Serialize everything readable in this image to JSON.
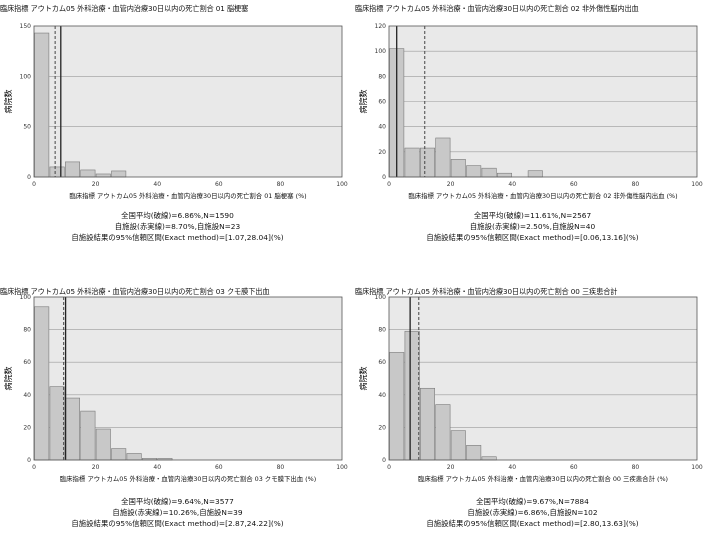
{
  "chart_data": [
    {
      "type": "bar",
      "title": "臨床指標 アウトカム05 外科治療・血管内治療30日以内の死亡割合 01 脳梗塞",
      "xlabel": "臨床指標 アウトカム05 外科治療・血管内治療30日以内の死亡割合 01 脳梗塞 (%)",
      "ylabel": "病院数",
      "xlim": [
        0,
        100
      ],
      "ylim": [
        0,
        150
      ],
      "xticks": [
        "0",
        "20",
        "40",
        "60",
        "80",
        "100"
      ],
      "yticks": [
        "0",
        "50",
        "100",
        "150"
      ],
      "bin_width": 5,
      "bins": [
        0,
        5,
        10,
        15,
        20,
        25,
        30,
        35,
        40,
        45,
        50,
        55,
        60,
        65,
        70,
        75,
        80,
        85,
        90,
        95
      ],
      "values": [
        143,
        10,
        15,
        7,
        3,
        6,
        0,
        0,
        0,
        0,
        0,
        0,
        0,
        0,
        0,
        0,
        0,
        0,
        0,
        0
      ],
      "national_mean": 6.86,
      "facility_value": 8.7,
      "ci": [
        1.07,
        28.04
      ],
      "stats": [
        "全国平均(破線)=6.86%,N=1590",
        "自施設(赤実線)=8.70%,自施設N=23",
        "自施設結果の95%信頼区間(Exact method)=[1.07,28.04](%)"
      ]
    },
    {
      "type": "bar",
      "title": "臨床指標 アウトカム05 外科治療・血管内治療30日以内の死亡割合 02 非外傷性脳内出血",
      "xlabel": "臨床指標 アウトカム05 外科治療・血管内治療30日以内の死亡割合 02 非外傷性脳内出血 (%)",
      "ylabel": "病院数",
      "xlim": [
        0,
        100
      ],
      "ylim": [
        0,
        120
      ],
      "xticks": [
        "0",
        "20",
        "40",
        "60",
        "80",
        "100"
      ],
      "yticks": [
        "0",
        "20",
        "40",
        "60",
        "80",
        "100",
        "120"
      ],
      "bin_width": 5,
      "bins": [
        0,
        5,
        10,
        15,
        20,
        25,
        30,
        35,
        40,
        45,
        50,
        55,
        60,
        65,
        70,
        75,
        80,
        85,
        90,
        95
      ],
      "values": [
        102,
        23,
        23,
        31,
        14,
        9,
        7,
        3,
        0,
        5,
        0,
        0,
        0,
        0,
        0,
        0,
        0,
        0,
        0,
        0
      ],
      "national_mean": 11.61,
      "facility_value": 2.5,
      "ci": [
        0.06,
        13.16
      ],
      "stats": [
        "全国平均(破線)=11.61%,N=2567",
        "自施設(赤実線)=2.50%,自施設N=40",
        "自施設結果の95%信頼区間(Exact method)=[0.06,13.16](%)"
      ]
    },
    {
      "type": "bar",
      "title": "臨床指標 アウトカム05 外科治療・血管内治療30日以内の死亡割合 03 クモ膜下出血",
      "xlabel": "臨床指標 アウトカム05 外科治療・血管内治療30日以内の死亡割合 03 クモ膜下出血 (%)",
      "ylabel": "病院数",
      "xlim": [
        0,
        100
      ],
      "ylim": [
        0,
        100
      ],
      "xticks": [
        "0",
        "20",
        "40",
        "60",
        "80",
        "100"
      ],
      "yticks": [
        "0",
        "20",
        "40",
        "60",
        "80",
        "100"
      ],
      "bin_width": 5,
      "bins": [
        0,
        5,
        10,
        15,
        20,
        25,
        30,
        35,
        40,
        45,
        50,
        55,
        60,
        65,
        70,
        75,
        80,
        85,
        90,
        95
      ],
      "values": [
        94,
        45,
        38,
        30,
        19,
        7,
        4,
        1,
        1,
        0,
        0,
        0,
        0,
        0,
        0,
        0,
        0,
        0,
        0,
        0
      ],
      "national_mean": 9.64,
      "facility_value": 10.26,
      "ci": [
        2.87,
        24.22
      ],
      "stats": [
        "全国平均(破線)=9.64%,N=3577",
        "自施設(赤実線)=10.26%,自施設N=39",
        "自施設結果の95%信頼区間(Exact method)=[2.87,24.22](%)"
      ]
    },
    {
      "type": "bar",
      "title": "臨床指標 アウトカム05 外科治療・血管内治療30日以内の死亡割合 00 三疾患合計",
      "xlabel": "臨床指標 アウトカム05 外科治療・血管内治療30日以内の死亡割合 00 三疾患合計 (%)",
      "ylabel": "病院数",
      "xlim": [
        0,
        100
      ],
      "ylim": [
        0,
        100
      ],
      "xticks": [
        "0",
        "20",
        "40",
        "60",
        "80",
        "100"
      ],
      "yticks": [
        "0",
        "20",
        "40",
        "60",
        "80",
        "100"
      ],
      "bin_width": 5,
      "bins": [
        0,
        5,
        10,
        15,
        20,
        25,
        30,
        35,
        40,
        45,
        50,
        55,
        60,
        65,
        70,
        75,
        80,
        85,
        90,
        95
      ],
      "values": [
        66,
        79,
        44,
        34,
        18,
        9,
        2,
        0,
        0,
        0,
        0,
        0,
        0,
        0,
        0,
        0,
        0,
        0,
        0,
        0
      ],
      "national_mean": 9.67,
      "facility_value": 6.86,
      "ci": [
        2.8,
        13.63
      ],
      "stats": [
        "全国平均(破線)=9.67%,N=7884",
        "自施設(赤実線)=6.86%,自施設N=102",
        "自施設結果の95%信頼区間(Exact method)=[2.80,13.63](%)"
      ]
    }
  ]
}
